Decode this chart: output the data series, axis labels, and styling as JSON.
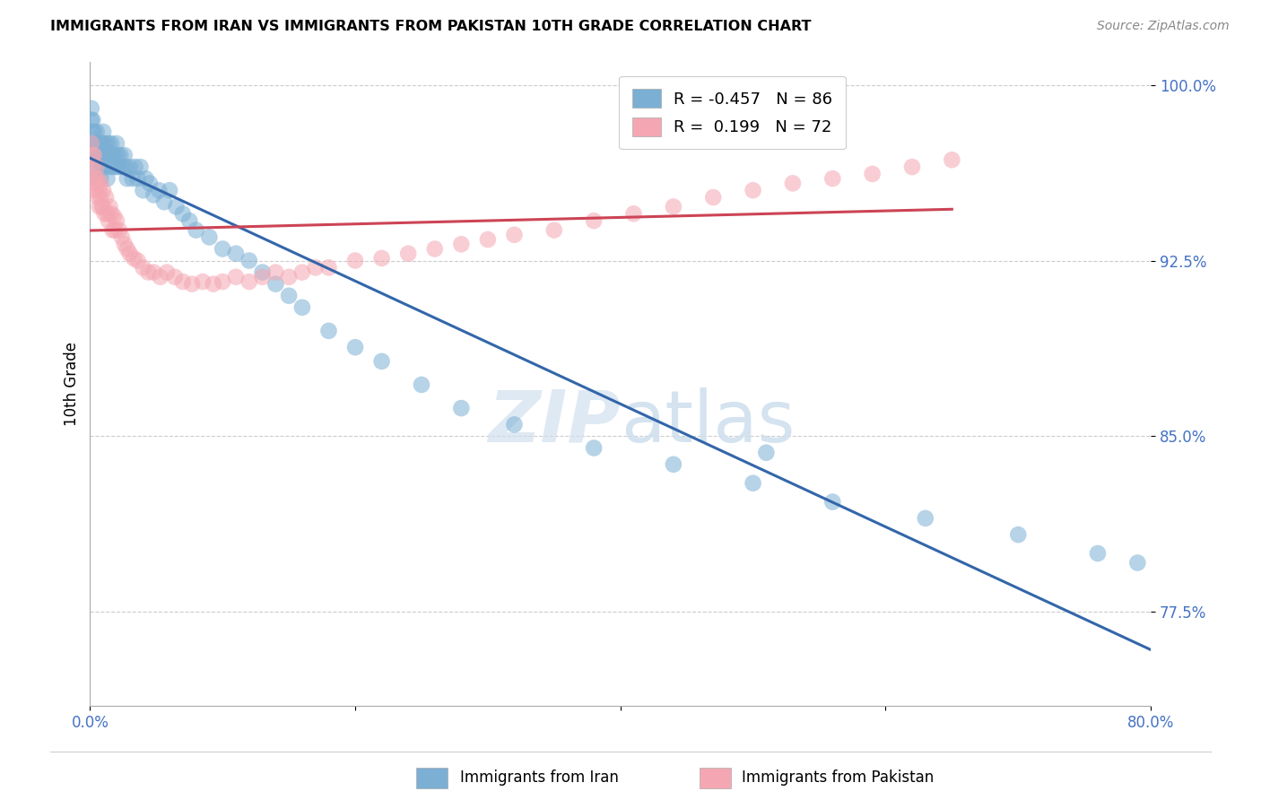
{
  "title": "IMMIGRANTS FROM IRAN VS IMMIGRANTS FROM PAKISTAN 10TH GRADE CORRELATION CHART",
  "source": "Source: ZipAtlas.com",
  "ylabel": "10th Grade",
  "xlim": [
    0.0,
    0.8
  ],
  "ylim": [
    0.735,
    1.01
  ],
  "xtick_positions": [
    0.0,
    0.2,
    0.4,
    0.6,
    0.8
  ],
  "xticklabels": [
    "0.0%",
    "",
    "",
    "",
    "80.0%"
  ],
  "ytick_positions": [
    0.775,
    0.85,
    0.925,
    1.0
  ],
  "ytick_labels": [
    "77.5%",
    "85.0%",
    "92.5%",
    "100.0%"
  ],
  "legend_r_blue": "-0.457",
  "legend_n_blue": "86",
  "legend_r_pink": "0.199",
  "legend_n_pink": "72",
  "legend_label_blue": "Immigrants from Iran",
  "legend_label_pink": "Immigrants from Pakistan",
  "blue_color": "#7bafd4",
  "pink_color": "#f4a7b2",
  "blue_line_color": "#3366aa",
  "pink_line_color": "#cc4455",
  "watermark_color": "#d0e0ee",
  "iran_x": [
    0.001,
    0.001,
    0.002,
    0.002,
    0.002,
    0.003,
    0.003,
    0.003,
    0.004,
    0.004,
    0.004,
    0.005,
    0.005,
    0.005,
    0.006,
    0.006,
    0.007,
    0.007,
    0.007,
    0.008,
    0.008,
    0.009,
    0.009,
    0.01,
    0.01,
    0.01,
    0.011,
    0.012,
    0.012,
    0.013,
    0.013,
    0.014,
    0.015,
    0.015,
    0.016,
    0.017,
    0.018,
    0.019,
    0.02,
    0.02,
    0.021,
    0.022,
    0.023,
    0.025,
    0.026,
    0.027,
    0.028,
    0.03,
    0.032,
    0.034,
    0.036,
    0.038,
    0.04,
    0.042,
    0.045,
    0.048,
    0.052,
    0.056,
    0.06,
    0.065,
    0.07,
    0.075,
    0.08,
    0.09,
    0.1,
    0.11,
    0.12,
    0.13,
    0.14,
    0.15,
    0.16,
    0.18,
    0.2,
    0.22,
    0.25,
    0.28,
    0.32,
    0.38,
    0.44,
    0.5,
    0.56,
    0.63,
    0.7,
    0.76,
    0.79,
    0.51
  ],
  "iran_y": [
    0.99,
    0.985,
    0.98,
    0.975,
    0.985,
    0.975,
    0.97,
    0.98,
    0.97,
    0.975,
    0.965,
    0.98,
    0.97,
    0.96,
    0.975,
    0.97,
    0.97,
    0.965,
    0.975,
    0.97,
    0.96,
    0.965,
    0.975,
    0.97,
    0.98,
    0.975,
    0.97,
    0.965,
    0.975,
    0.97,
    0.96,
    0.975,
    0.97,
    0.965,
    0.975,
    0.97,
    0.965,
    0.97,
    0.965,
    0.975,
    0.97,
    0.965,
    0.97,
    0.965,
    0.97,
    0.965,
    0.96,
    0.965,
    0.96,
    0.965,
    0.96,
    0.965,
    0.955,
    0.96,
    0.958,
    0.953,
    0.955,
    0.95,
    0.955,
    0.948,
    0.945,
    0.942,
    0.938,
    0.935,
    0.93,
    0.928,
    0.925,
    0.92,
    0.915,
    0.91,
    0.905,
    0.895,
    0.888,
    0.882,
    0.872,
    0.862,
    0.855,
    0.845,
    0.838,
    0.83,
    0.822,
    0.815,
    0.808,
    0.8,
    0.796,
    0.843
  ],
  "pakistan_x": [
    0.001,
    0.002,
    0.002,
    0.003,
    0.003,
    0.004,
    0.004,
    0.005,
    0.005,
    0.006,
    0.006,
    0.007,
    0.007,
    0.008,
    0.008,
    0.009,
    0.01,
    0.01,
    0.011,
    0.012,
    0.013,
    0.014,
    0.015,
    0.016,
    0.017,
    0.018,
    0.019,
    0.02,
    0.022,
    0.024,
    0.026,
    0.028,
    0.03,
    0.033,
    0.036,
    0.04,
    0.044,
    0.048,
    0.053,
    0.058,
    0.064,
    0.07,
    0.077,
    0.085,
    0.093,
    0.1,
    0.11,
    0.12,
    0.13,
    0.14,
    0.15,
    0.16,
    0.17,
    0.18,
    0.2,
    0.22,
    0.24,
    0.26,
    0.28,
    0.3,
    0.32,
    0.35,
    0.38,
    0.41,
    0.44,
    0.47,
    0.5,
    0.53,
    0.56,
    0.59,
    0.62,
    0.65
  ],
  "pakistan_y": [
    0.975,
    0.97,
    0.965,
    0.97,
    0.958,
    0.96,
    0.955,
    0.965,
    0.958,
    0.96,
    0.952,
    0.955,
    0.948,
    0.958,
    0.952,
    0.948,
    0.955,
    0.948,
    0.945,
    0.952,
    0.945,
    0.942,
    0.948,
    0.945,
    0.938,
    0.944,
    0.938,
    0.942,
    0.938,
    0.935,
    0.932,
    0.93,
    0.928,
    0.926,
    0.925,
    0.922,
    0.92,
    0.92,
    0.918,
    0.92,
    0.918,
    0.916,
    0.915,
    0.916,
    0.915,
    0.916,
    0.918,
    0.916,
    0.918,
    0.92,
    0.918,
    0.92,
    0.922,
    0.922,
    0.925,
    0.926,
    0.928,
    0.93,
    0.932,
    0.934,
    0.936,
    0.938,
    0.942,
    0.945,
    0.948,
    0.952,
    0.955,
    0.958,
    0.96,
    0.962,
    0.965,
    0.968
  ]
}
